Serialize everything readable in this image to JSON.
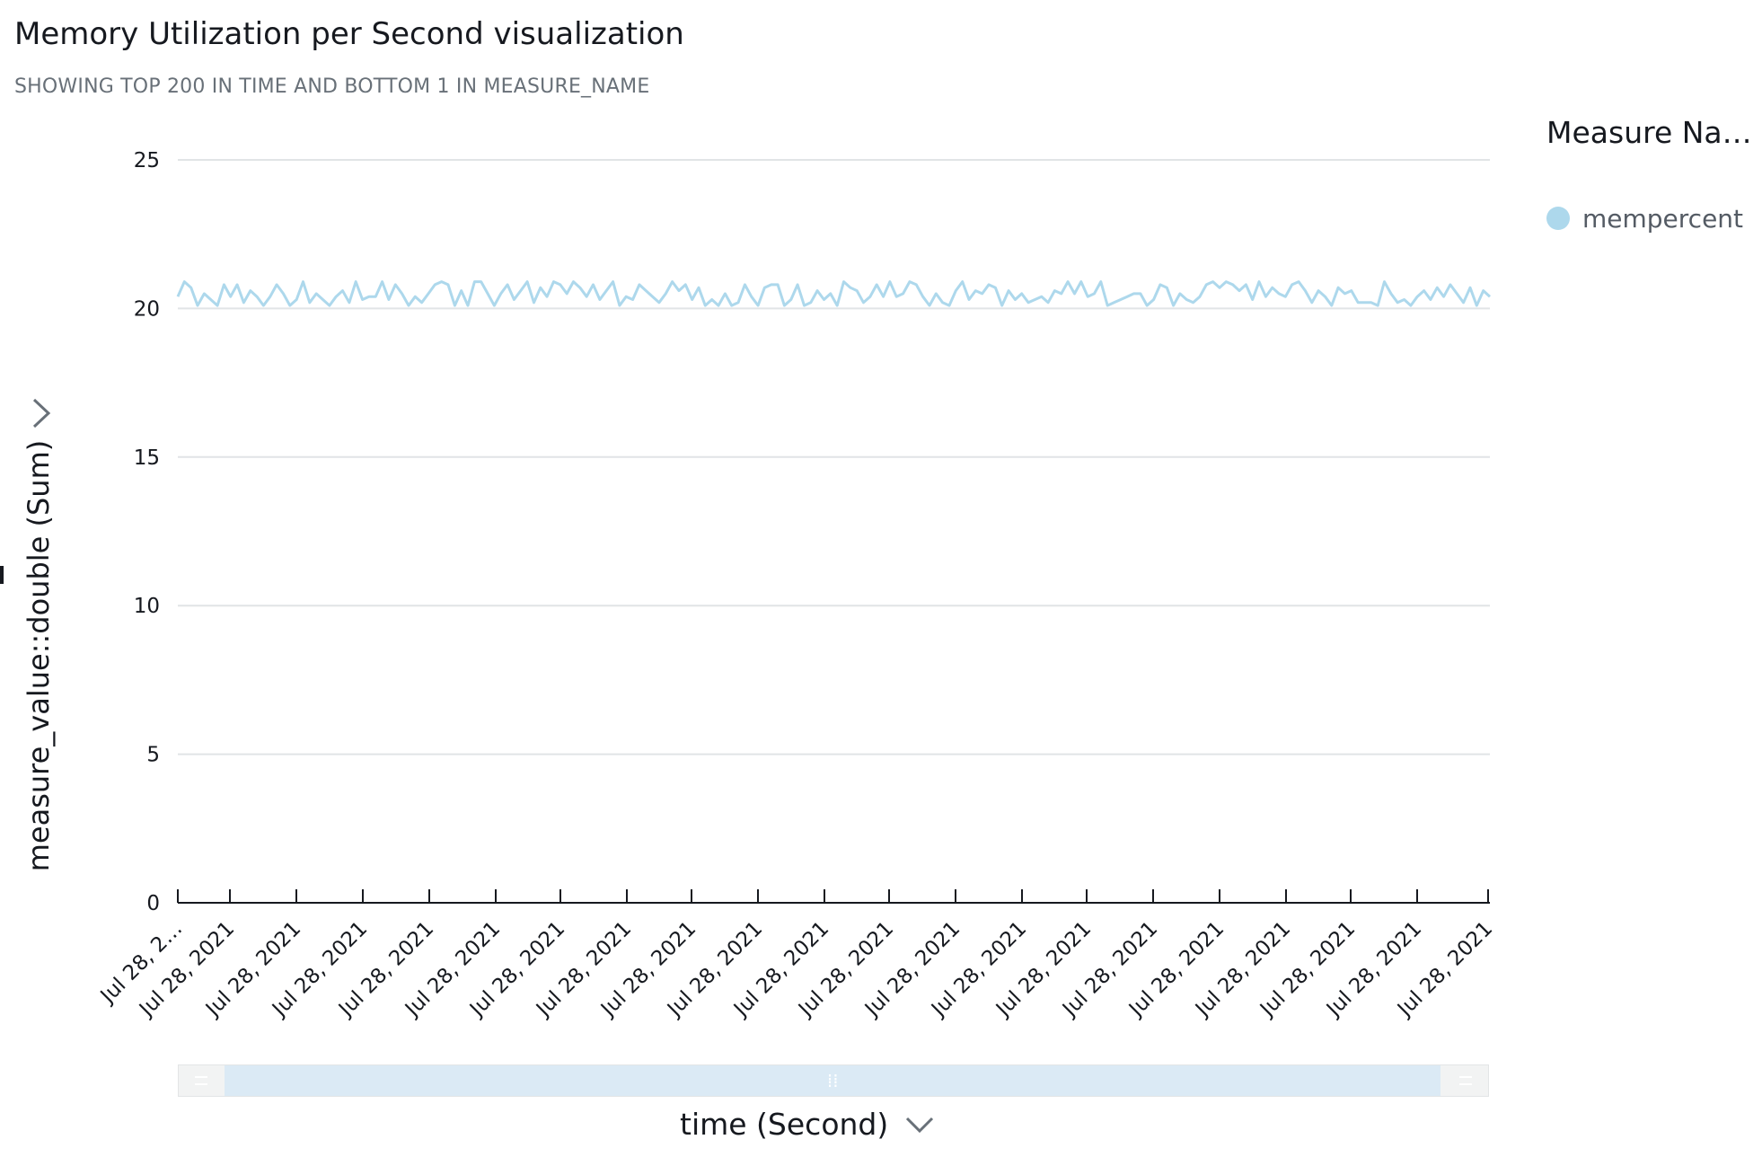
{
  "title": "Memory Utilization per Second visualization",
  "subtitle": "SHOWING TOP 200 IN TIME AND BOTTOM 1 IN MEASURE_NAME",
  "legend": {
    "title": "Measure Na…",
    "items": [
      {
        "label": "mempercent",
        "color": "#add8ec"
      }
    ]
  },
  "icons": {
    "expand": "chevron-right-icon",
    "x_axis_menu": "chevron-down-icon",
    "scroll_grip": "grip-icon"
  },
  "colors": {
    "line": "#add8ec",
    "grid": "#e1e4e6",
    "axis": "#16191f",
    "scroll_thumb": "#dbeaf5"
  },
  "chart_data": {
    "type": "line",
    "title": "Memory Utilization per Second visualization",
    "subtitle": "SHOWING TOP 200 IN TIME AND BOTTOM 1 IN MEASURE_NAME",
    "xlabel": "time (Second)",
    "ylabel": "measure_value::double (Sum)",
    "ylim": [
      0,
      25
    ],
    "y_ticks": [
      "0",
      "5",
      "10",
      "15",
      "20",
      "25"
    ],
    "x_tick_labels": [
      "Jul 28, 2…",
      "Jul 28, 2021",
      "Jul 28, 2021",
      "Jul 28, 2021",
      "Jul 28, 2021",
      "Jul 28, 2021",
      "Jul 28, 2021",
      "Jul 28, 2021",
      "Jul 28, 2021",
      "Jul 28, 2021",
      "Jul 28, 2021",
      "Jul 28, 2021",
      "Jul 28, 2021",
      "Jul 28, 2021",
      "Jul 28, 2021",
      "Jul 28, 2021",
      "Jul 28, 2021",
      "Jul 28, 2021",
      "Jul 28, 2021",
      "Jul 28, 2021",
      "Jul 28, 2021"
    ],
    "grid": true,
    "legend_position": "right",
    "series": [
      {
        "name": "mempercent",
        "color": "#add8ec",
        "values": [
          20.4,
          20.9,
          20.7,
          20.1,
          20.5,
          20.3,
          20.1,
          20.8,
          20.4,
          20.8,
          20.2,
          20.6,
          20.4,
          20.1,
          20.4,
          20.8,
          20.5,
          20.1,
          20.3,
          20.9,
          20.2,
          20.5,
          20.3,
          20.1,
          20.4,
          20.6,
          20.2,
          20.9,
          20.3,
          20.4,
          20.4,
          20.9,
          20.3,
          20.8,
          20.5,
          20.1,
          20.4,
          20.2,
          20.5,
          20.8,
          20.9,
          20.8,
          20.1,
          20.6,
          20.1,
          20.9,
          20.9,
          20.5,
          20.1,
          20.5,
          20.8,
          20.3,
          20.6,
          20.9,
          20.2,
          20.7,
          20.4,
          20.9,
          20.8,
          20.5,
          20.9,
          20.7,
          20.4,
          20.8,
          20.3,
          20.6,
          20.9,
          20.1,
          20.4,
          20.3,
          20.8,
          20.6,
          20.4,
          20.2,
          20.5,
          20.9,
          20.6,
          20.8,
          20.3,
          20.7,
          20.1,
          20.3,
          20.1,
          20.5,
          20.1,
          20.2,
          20.8,
          20.4,
          20.1,
          20.7,
          20.8,
          20.8,
          20.1,
          20.3,
          20.8,
          20.1,
          20.2,
          20.6,
          20.3,
          20.5,
          20.1,
          20.9,
          20.7,
          20.6,
          20.2,
          20.4,
          20.8,
          20.4,
          20.9,
          20.4,
          20.5,
          20.9,
          20.8,
          20.4,
          20.1,
          20.5,
          20.2,
          20.1,
          20.6,
          20.9,
          20.3,
          20.6,
          20.5,
          20.8,
          20.7,
          20.1,
          20.6,
          20.3,
          20.5,
          20.2,
          20.3,
          20.4,
          20.2,
          20.6,
          20.5,
          20.9,
          20.5,
          20.9,
          20.4,
          20.5,
          20.9,
          20.1,
          20.2,
          20.3,
          20.4,
          20.5,
          20.5,
          20.1,
          20.3,
          20.8,
          20.7,
          20.1,
          20.5,
          20.3,
          20.2,
          20.4,
          20.8,
          20.9,
          20.7,
          20.9,
          20.8,
          20.6,
          20.8,
          20.3,
          20.9,
          20.4,
          20.7,
          20.5,
          20.4,
          20.8,
          20.9,
          20.6,
          20.2,
          20.6,
          20.4,
          20.1,
          20.7,
          20.5,
          20.6,
          20.2,
          20.2,
          20.2,
          20.1,
          20.9,
          20.5,
          20.2,
          20.3,
          20.1,
          20.4,
          20.6,
          20.3,
          20.7,
          20.4,
          20.8,
          20.5,
          20.2,
          20.7,
          20.1,
          20.6,
          20.4
        ]
      }
    ]
  },
  "scrollbar": {
    "window_start": 0.035,
    "window_end": 0.964
  }
}
